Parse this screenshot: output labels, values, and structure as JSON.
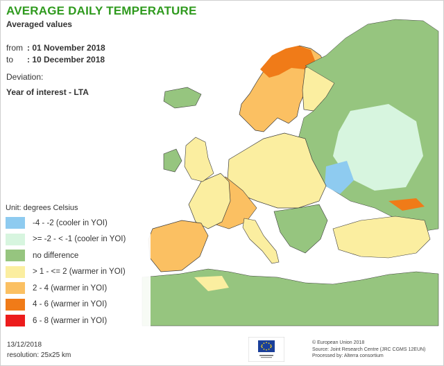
{
  "title": "AVERAGE DAILY TEMPERATURE",
  "subtitle": "Averaged values",
  "period": {
    "from_label": "from",
    "from_value": ": 01 November 2018",
    "to_label": "to",
    "to_value": ": 10 December 2018"
  },
  "deviation_label": "Deviation:",
  "comparison_label": "Year of interest - LTA",
  "legend": {
    "unit": "Unit: degrees Celsius",
    "items": [
      {
        "label": "-4 - -2 (cooler in YOI)",
        "color": "#8ecbf0"
      },
      {
        "label": ">= -2 - < -1 (cooler in YOI)",
        "color": "#d7f5df"
      },
      {
        "label": "no difference",
        "color": "#96c57f"
      },
      {
        "label": "> 1 - <= 2 (warmer in YOI)",
        "color": "#fbeea0"
      },
      {
        "label": "2 - 4 (warmer in YOI)",
        "color": "#fbc062"
      },
      {
        "label": "4 - 6 (warmer in YOI)",
        "color": "#f07b18"
      },
      {
        "label": "6 - 8 (warmer in YOI)",
        "color": "#ec1c1c"
      }
    ]
  },
  "footer": {
    "date": "13/12/2018",
    "resolution": "resolution: 25x25 km",
    "credit_lines": [
      "© European Union 2018",
      "Source: Joint Research Centre (JRC CGMS 12EUN)",
      "Processed by: Alterra consortium"
    ]
  },
  "colors": {
    "title": "#2f9a1e",
    "sea": "#ffffff",
    "land_no_difference": "#96c57f",
    "border": "#3a3a3a"
  }
}
